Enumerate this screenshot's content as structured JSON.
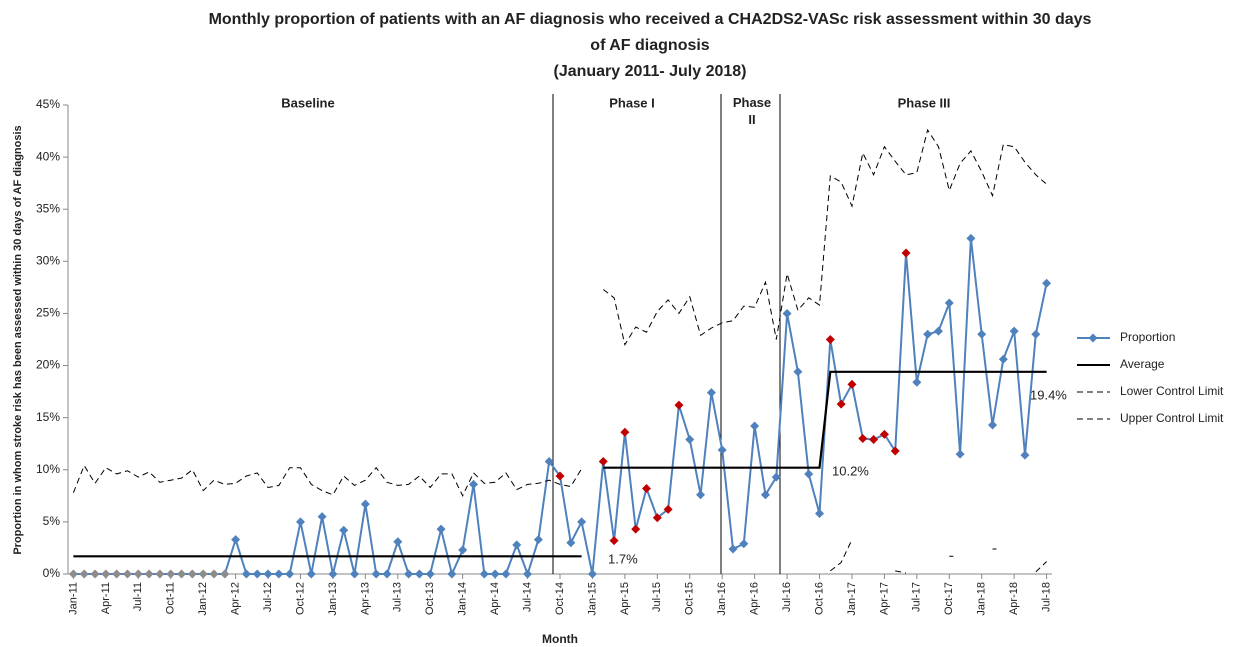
{
  "chart_data": {
    "type": "line",
    "title": [
      "Monthly proportion of patients with an AF diagnosis who received a CHA2DS2-VASc risk assessment within 30 days",
      "of AF diagnosis",
      "(January 2011- July 2018)"
    ],
    "x_label": "Month",
    "y_label": "Proportion in whom stroke risk has been assessed within 30 days of AF diagnosis",
    "phases": [
      "Baseline",
      "Phase I",
      "Phase II",
      "Phase III"
    ],
    "annotations": [
      "1.7%",
      "10.2%",
      "19.4%"
    ],
    "categories": [
      "Jan-11",
      null,
      null,
      "Apr-11",
      null,
      null,
      "Jul-11",
      null,
      null,
      "Oct-11",
      null,
      null,
      "Jan-12",
      null,
      null,
      "Apr-12",
      null,
      null,
      "Jul-12",
      null,
      null,
      "Oct-12",
      null,
      null,
      "Jan-13",
      null,
      null,
      "Apr-13",
      null,
      null,
      "Jul-13",
      null,
      null,
      "Oct-13",
      null,
      null,
      "Jan-14",
      null,
      null,
      "Apr-14",
      null,
      null,
      "Jul-14",
      null,
      null,
      "Oct-14",
      null,
      null,
      "Jan-15",
      null,
      null,
      "Apr-15",
      null,
      null,
      "Jul-15",
      null,
      null,
      "Oct-15",
      null,
      null,
      "Jan-16",
      null,
      null,
      "Apr-16",
      null,
      null,
      "Jul-16",
      null,
      null,
      "Oct-16",
      null,
      null,
      "Jan-17",
      null,
      null,
      "Apr-17",
      null,
      null,
      "Jul-17",
      null,
      null,
      "Oct-17",
      null,
      null,
      "Jan-18",
      null,
      null,
      "Apr-18",
      null,
      null,
      "Jul-18"
    ],
    "series": [
      {
        "name": "Proportion",
        "color": "#4f81bd",
        "marker": "diamond",
        "values": [
          0,
          0,
          0,
          0,
          0,
          0,
          0,
          0,
          0,
          0,
          0,
          0,
          0,
          0,
          0,
          3.3,
          0,
          0,
          0,
          0,
          0,
          5.0,
          0,
          5.5,
          0,
          4.2,
          0,
          6.7,
          0,
          0,
          3.1,
          0,
          0,
          0,
          4.3,
          0,
          2.3,
          8.6,
          0,
          0,
          0,
          2.8,
          0,
          3.3,
          10.8,
          9.4,
          3.0,
          5.0,
          0,
          10.8,
          3.2,
          13.6,
          4.3,
          8.2,
          5.4,
          6.2,
          16.2,
          12.9,
          7.6,
          17.4,
          11.9,
          2.4,
          2.9,
          14.2,
          7.6,
          9.3,
          25.0,
          19.4,
          9.6,
          5.8,
          22.5,
          16.3,
          18.2,
          13.0,
          12.9,
          13.4,
          11.8,
          30.8,
          18.4,
          23.0,
          23.3,
          26.0,
          11.5,
          32.2,
          23.0,
          14.3,
          20.6,
          23.3,
          11.4,
          23.0,
          27.9
        ],
        "point_colors": [
          "#8c8c8c",
          "#8c8c8c",
          "#8c8c8c",
          "#8c8c8c",
          "#8c8c8c",
          "#8c8c8c",
          "#8c8c8c",
          "#8c8c8c",
          "#8c8c8c",
          "#8c8c8c",
          "#8c8c8c",
          "#8c8c8c",
          "#8c8c8c",
          "#8c8c8c",
          "#8c8c8c",
          "#4f81bd",
          "#4f81bd",
          "#4f81bd",
          "#4f81bd",
          "#4f81bd",
          "#4f81bd",
          "#4f81bd",
          "#4f81bd",
          "#4f81bd",
          "#4f81bd",
          "#4f81bd",
          "#4f81bd",
          "#4f81bd",
          "#4f81bd",
          "#4f81bd",
          "#4f81bd",
          "#4f81bd",
          "#4f81bd",
          "#4f81bd",
          "#4f81bd",
          "#4f81bd",
          "#4f81bd",
          "#4f81bd",
          "#4f81bd",
          "#4f81bd",
          "#4f81bd",
          "#4f81bd",
          "#4f81bd",
          "#4f81bd",
          "#4f81bd",
          "#c00000",
          "#4f81bd",
          "#4f81bd",
          "#4f81bd",
          "#c00000",
          "#c00000",
          "#c00000",
          "#c00000",
          "#c00000",
          "#c00000",
          "#c00000",
          "#c00000",
          "#4f81bd",
          "#4f81bd",
          "#4f81bd",
          "#4f81bd",
          "#4f81bd",
          "#4f81bd",
          "#4f81bd",
          "#4f81bd",
          "#4f81bd",
          "#4f81bd",
          "#4f81bd",
          "#4f81bd",
          "#4f81bd",
          "#c00000",
          "#c00000",
          "#c00000",
          "#c00000",
          "#c00000",
          "#c00000",
          "#c00000",
          "#c00000",
          "#4f81bd",
          "#4f81bd",
          "#4f81bd",
          "#4f81bd",
          "#4f81bd",
          "#4f81bd",
          "#4f81bd",
          "#4f81bd",
          "#4f81bd",
          "#4f81bd",
          "#4f81bd",
          "#4f81bd",
          "#4f81bd"
        ]
      },
      {
        "name": "Average",
        "color": "#000000",
        "values": [
          1.7,
          1.7,
          1.7,
          1.7,
          1.7,
          1.7,
          1.7,
          1.7,
          1.7,
          1.7,
          1.7,
          1.7,
          1.7,
          1.7,
          1.7,
          1.7,
          1.7,
          1.7,
          1.7,
          1.7,
          1.7,
          1.7,
          1.7,
          1.7,
          1.7,
          1.7,
          1.7,
          1.7,
          1.7,
          1.7,
          1.7,
          1.7,
          1.7,
          1.7,
          1.7,
          1.7,
          1.7,
          1.7,
          1.7,
          1.7,
          1.7,
          1.7,
          1.7,
          1.7,
          1.7,
          1.7,
          1.7,
          1.7,
          null,
          10.2,
          10.2,
          10.2,
          10.2,
          10.2,
          10.2,
          10.2,
          10.2,
          10.2,
          10.2,
          10.2,
          10.2,
          10.2,
          10.2,
          10.2,
          10.2,
          10.2,
          10.2,
          10.2,
          10.2,
          10.2,
          19.4,
          19.4,
          19.4,
          19.4,
          19.4,
          19.4,
          19.4,
          19.4,
          19.4,
          19.4,
          19.4,
          19.4,
          19.4,
          19.4,
          19.4,
          19.4,
          19.4,
          19.4,
          19.4,
          19.4,
          19.4
        ]
      },
      {
        "name": "Lower Control Limit",
        "color": "#000000",
        "dashed": true,
        "values": [
          null,
          null,
          null,
          null,
          null,
          null,
          null,
          null,
          null,
          null,
          null,
          null,
          null,
          null,
          null,
          null,
          null,
          null,
          null,
          null,
          null,
          null,
          null,
          null,
          null,
          null,
          null,
          null,
          null,
          null,
          null,
          null,
          null,
          null,
          null,
          null,
          null,
          null,
          null,
          null,
          null,
          null,
          null,
          null,
          null,
          null,
          null,
          null,
          null,
          null,
          null,
          null,
          null,
          null,
          null,
          null,
          null,
          null,
          null,
          null,
          null,
          null,
          null,
          null,
          null,
          null,
          null,
          null,
          null,
          null,
          0.3,
          1.1,
          3.3,
          null,
          null,
          null,
          0.3,
          0.1,
          null,
          null,
          null,
          1.7,
          null,
          null,
          null,
          2.4,
          null,
          null,
          null,
          0.2,
          1.2
        ]
      },
      {
        "name": "Upper Control Limit",
        "color": "#000000",
        "dashed": true,
        "values": [
          7.8,
          10.4,
          8.7,
          10.2,
          9.6,
          9.9,
          9.3,
          9.8,
          8.8,
          9.0,
          9.2,
          10.0,
          8.0,
          9.0,
          8.6,
          8.7,
          9.4,
          9.7,
          8.3,
          8.5,
          10.2,
          10.2,
          8.6,
          8.0,
          7.6,
          9.4,
          8.5,
          9.0,
          10.2,
          8.8,
          8.5,
          8.6,
          9.4,
          8.3,
          9.6,
          9.6,
          7.5,
          9.7,
          8.7,
          8.8,
          9.7,
          8.1,
          8.6,
          8.7,
          9.0,
          8.6,
          8.4,
          10.1,
          null,
          27.3,
          26.5,
          22.0,
          23.7,
          23.2,
          25.2,
          26.3,
          25.0,
          26.6,
          22.9,
          23.6,
          24.1,
          24.3,
          25.7,
          25.6,
          28.0,
          22.5,
          28.8,
          25.3,
          26.5,
          25.8,
          38.2,
          37.6,
          35.3,
          40.4,
          38.3,
          41.0,
          39.6,
          38.3,
          38.5,
          42.6,
          41.0,
          36.8,
          39.4,
          40.6,
          38.6,
          36.3,
          41.2,
          41.0,
          39.5,
          38.3,
          37.4
        ]
      }
    ],
    "ylim": [
      0,
      45
    ],
    "yticks": [
      {
        "value": 0,
        "label": "0%"
      },
      {
        "value": 5,
        "label": "5%"
      },
      {
        "value": 10,
        "label": "10%"
      },
      {
        "value": 15,
        "label": "15%"
      },
      {
        "value": 20,
        "label": "20%"
      },
      {
        "value": 25,
        "label": "25%"
      },
      {
        "value": 30,
        "label": "30%"
      },
      {
        "value": 35,
        "label": "35%"
      },
      {
        "value": 40,
        "label": "40%"
      },
      {
        "value": 45,
        "label": "45%"
      }
    ],
    "grid": false,
    "legend": "right"
  }
}
